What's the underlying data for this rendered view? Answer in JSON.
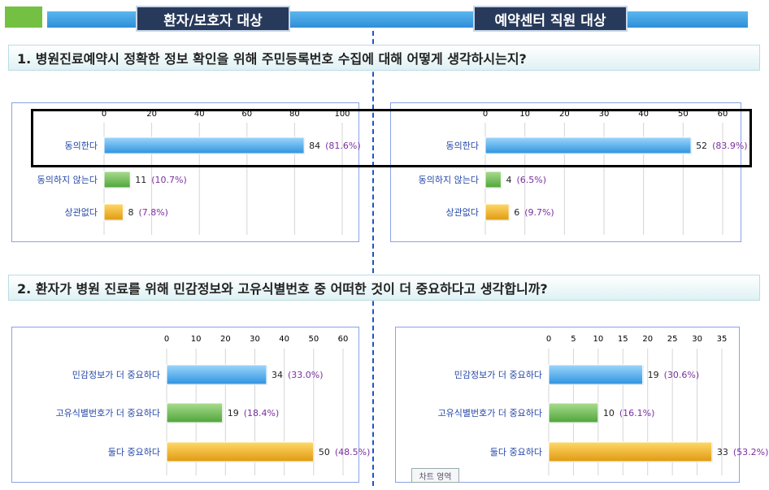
{
  "header": {
    "left_title": "환자/보호자 대상",
    "right_title": "예약센터 직원 대상"
  },
  "questions": [
    {
      "text": "1. 병원진료예약시 정확한 정보 확인을 위해 주민등록번호 수집에 대해 어떻게 생각하시는지?"
    },
    {
      "text": "2. 환자가 병원 진료를 위해 민감정보와 고유식별번호 중 어떠한 것이 더 중요하다고 생각합니까?"
    }
  ],
  "watermark": "차트 영역",
  "colors": {
    "blue": "#4aa8ea",
    "green": "#72c05a",
    "orange": "#f0b028",
    "pct": "#7b2fa0",
    "category": "#2548a8"
  },
  "chart_data": [
    {
      "type": "bar",
      "orientation": "horizontal",
      "categories": [
        "동의한다",
        "동의하지 않는다",
        "상관없다"
      ],
      "values": [
        84,
        11,
        8
      ],
      "value_labels": [
        "84",
        "11",
        "8"
      ],
      "percent_labels": [
        "(81.6%)",
        "(10.7%)",
        "(7.8%)"
      ],
      "colors": [
        "blue",
        "green",
        "orange"
      ],
      "xlim": [
        0,
        100
      ],
      "ticks": [
        0,
        20,
        40,
        60,
        80,
        100
      ]
    },
    {
      "type": "bar",
      "orientation": "horizontal",
      "categories": [
        "동의한다",
        "동의하지 않는다",
        "상관없다"
      ],
      "values": [
        52,
        4,
        6
      ],
      "value_labels": [
        "52",
        "4",
        "6"
      ],
      "percent_labels": [
        "(83.9%)",
        "(6.5%)",
        "(9.7%)"
      ],
      "colors": [
        "blue",
        "green",
        "orange"
      ],
      "xlim": [
        0,
        60
      ],
      "ticks": [
        0,
        10,
        20,
        30,
        40,
        50,
        60
      ]
    },
    {
      "type": "bar",
      "orientation": "horizontal",
      "categories": [
        "민감정보가 더 중요하다",
        "고유식별번호가 더 중요하다",
        "둘다 중요하다"
      ],
      "values": [
        34,
        19,
        50
      ],
      "value_labels": [
        "34",
        "19",
        "50"
      ],
      "percent_labels": [
        "(33.0%)",
        "(18.4%)",
        "(48.5%)"
      ],
      "colors": [
        "blue",
        "green",
        "orange"
      ],
      "xlim": [
        0,
        60
      ],
      "ticks": [
        0,
        10,
        20,
        30,
        40,
        50,
        60
      ]
    },
    {
      "type": "bar",
      "orientation": "horizontal",
      "categories": [
        "민감정보가 더 중요하다",
        "고유식별번호가 더 중요하다",
        "둘다 중요하다"
      ],
      "values": [
        19,
        10,
        33
      ],
      "value_labels": [
        "19",
        "10",
        "33"
      ],
      "percent_labels": [
        "(30.6%)",
        "(16.1%)",
        "(53.2%)"
      ],
      "colors": [
        "blue",
        "green",
        "orange"
      ],
      "xlim": [
        0,
        35
      ],
      "ticks": [
        0,
        5,
        10,
        15,
        20,
        25,
        30,
        35
      ]
    }
  ]
}
